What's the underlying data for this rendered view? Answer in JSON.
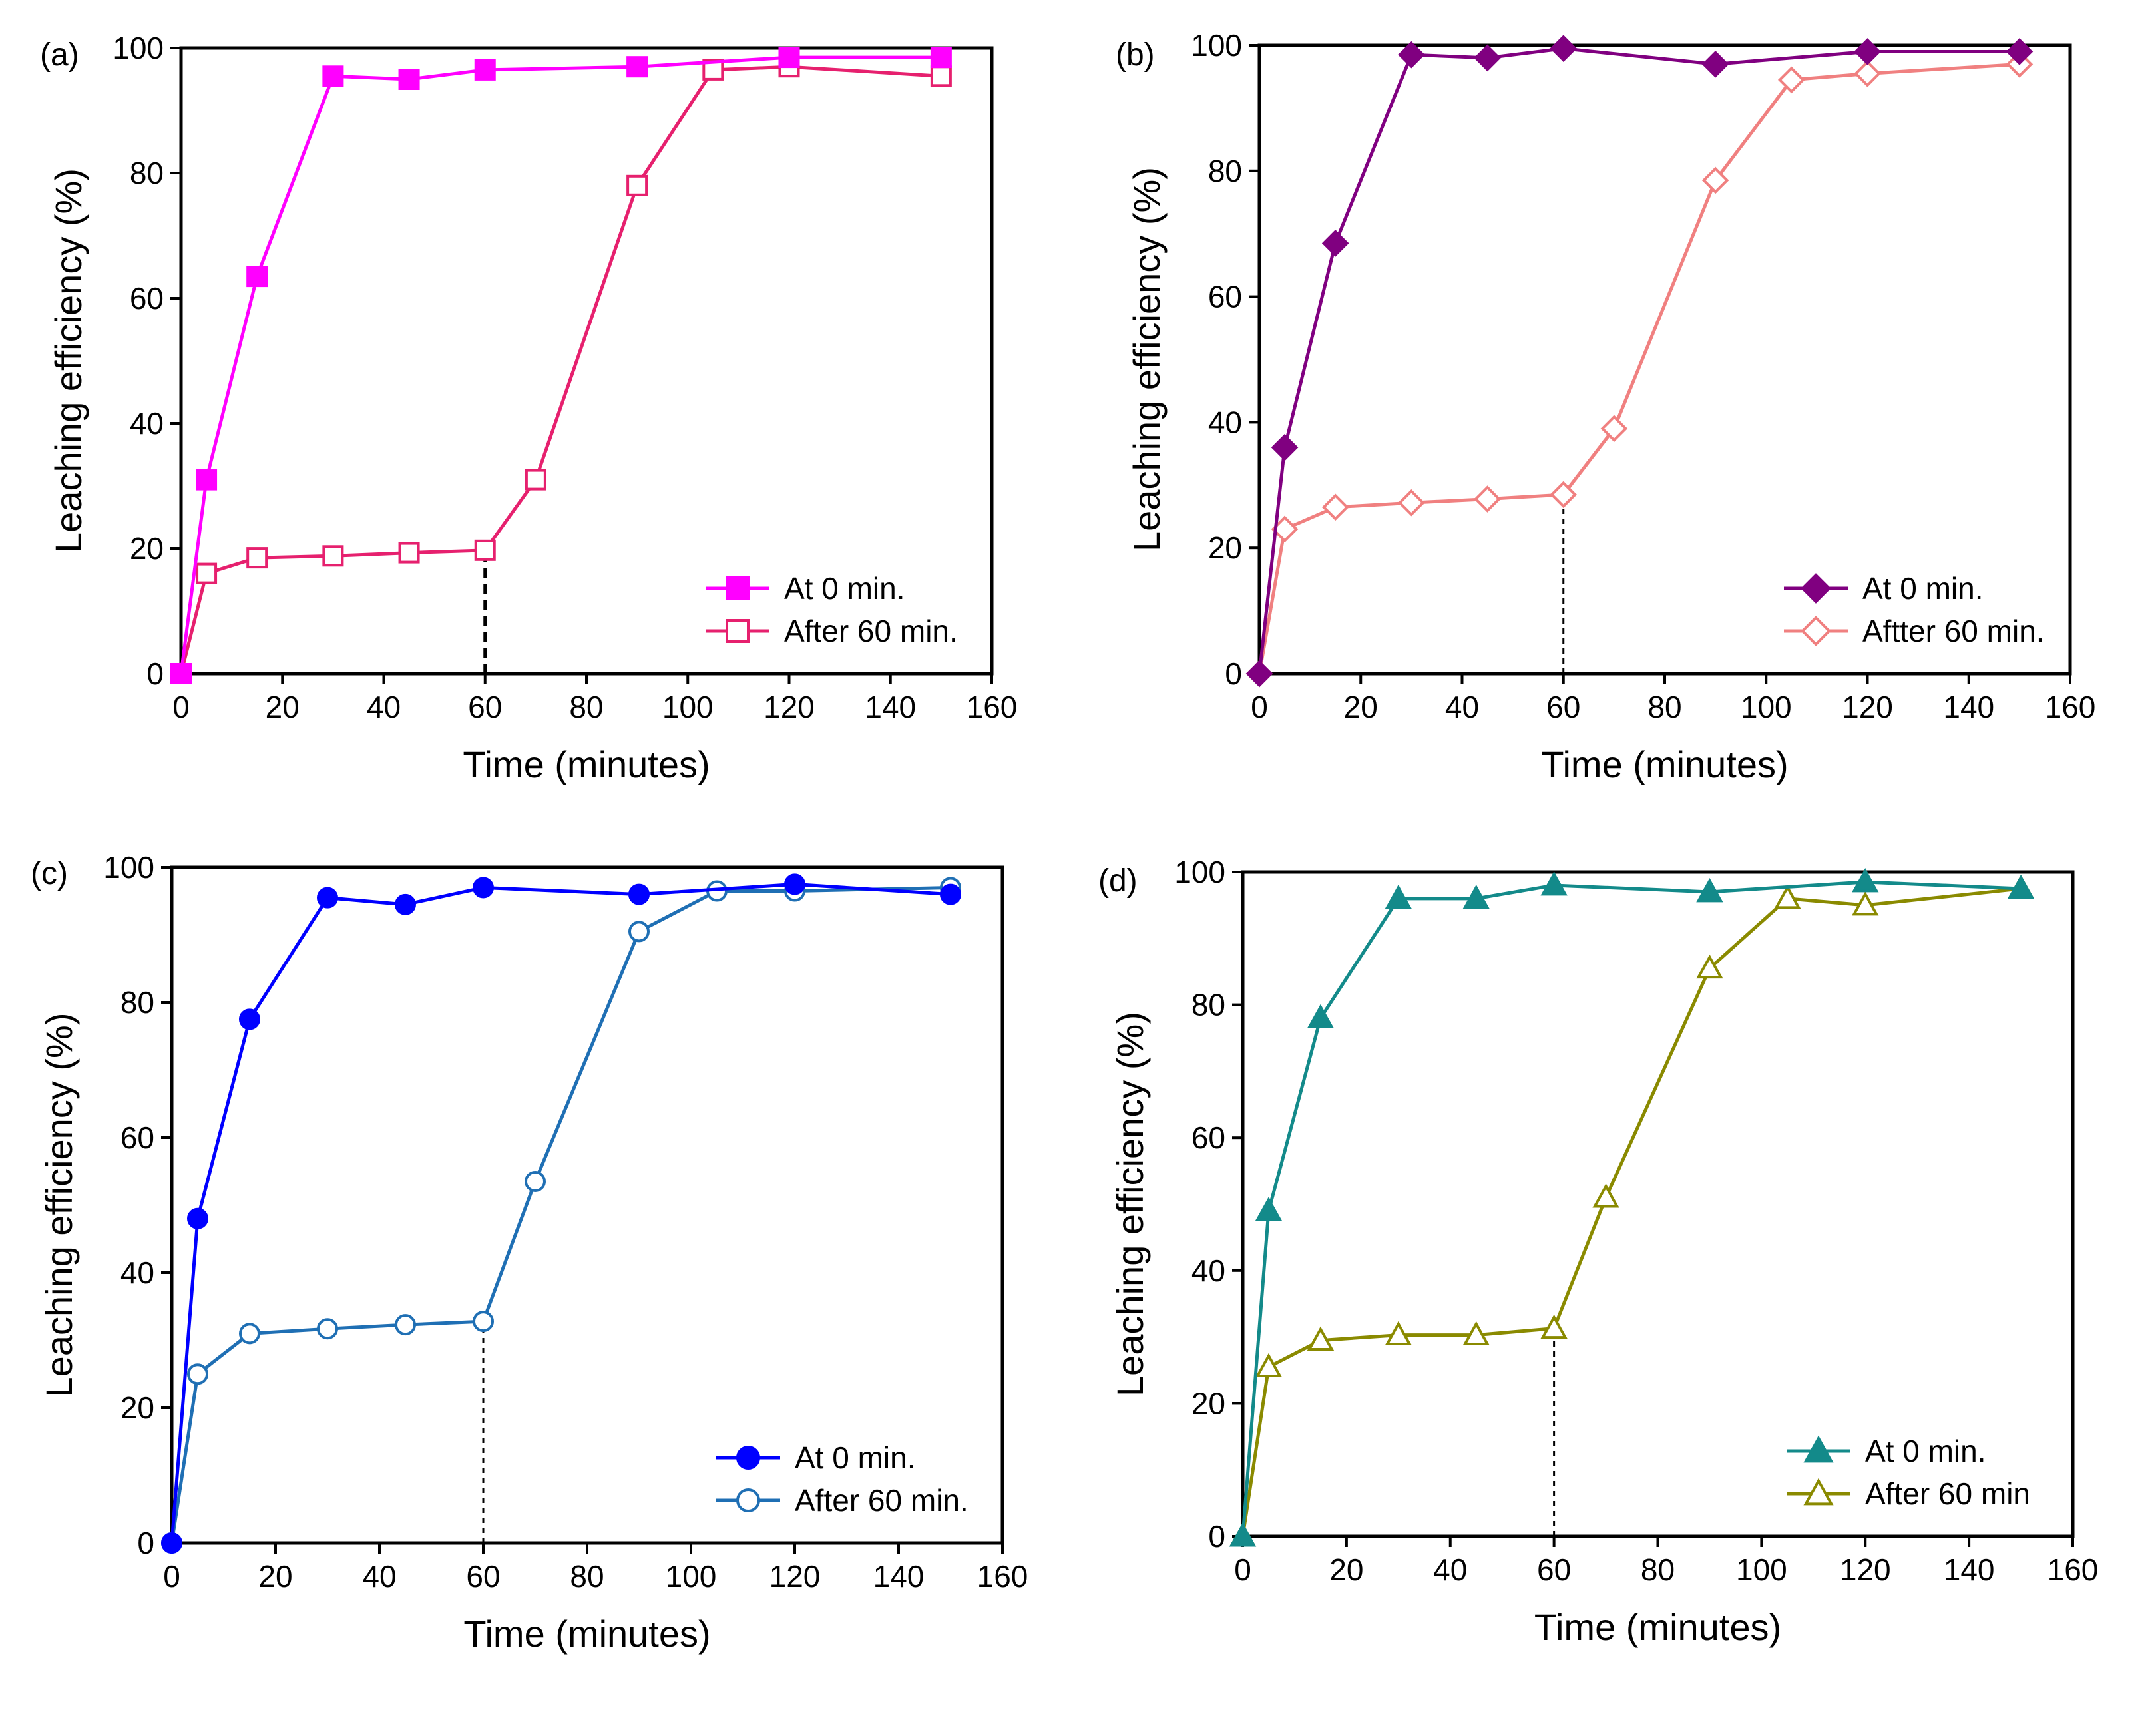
{
  "chart_data": [
    {
      "type": "line",
      "panel_label": "(a)",
      "xlabel": "Time (minutes)",
      "ylabel": "Leaching efficiency (%)",
      "xlim": [
        0,
        160
      ],
      "ylim": [
        0,
        100
      ],
      "xticks": [
        0,
        20,
        40,
        60,
        80,
        100,
        120,
        140,
        160
      ],
      "yticks": [
        0,
        20,
        40,
        60,
        80,
        100
      ],
      "grid": false,
      "legend_position": "bottom-right",
      "marker_line": 60,
      "series": [
        {
          "name": "At 0 min.",
          "color": "#ff00ff",
          "marker": "square",
          "filled": true,
          "x": [
            0,
            5,
            15,
            30,
            45,
            60,
            90,
            120,
            150
          ],
          "y": [
            0,
            31,
            63.5,
            95.5,
            95,
            96.5,
            97,
            98.5,
            98.5
          ]
        },
        {
          "name": "After 60 min.",
          "color": "#e6206e",
          "marker": "square",
          "filled": false,
          "x": [
            0,
            5,
            15,
            30,
            45,
            60,
            70,
            90,
            105,
            120,
            150
          ],
          "y": [
            0,
            16,
            18.5,
            18.8,
            19.3,
            19.7,
            31,
            78,
            96.5,
            97,
            95.5
          ]
        }
      ]
    },
    {
      "type": "line",
      "panel_label": "(b)",
      "xlabel": "Time (minutes)",
      "ylabel": "Leaching efficiency (%)",
      "xlim": [
        0,
        160
      ],
      "ylim": [
        0,
        100
      ],
      "xticks": [
        0,
        20,
        40,
        60,
        80,
        100,
        120,
        140,
        160
      ],
      "yticks": [
        0,
        20,
        40,
        60,
        80,
        100
      ],
      "grid": false,
      "legend_position": "bottom-right",
      "marker_line": 60,
      "series": [
        {
          "name": "At 0 min.",
          "color": "#800080",
          "marker": "diamond",
          "filled": true,
          "x": [
            0,
            5,
            15,
            30,
            45,
            60,
            90,
            120,
            150
          ],
          "y": [
            0,
            36,
            68.5,
            98.5,
            98,
            99.5,
            97,
            99,
            99
          ]
        },
        {
          "name": "Aftter 60 min.",
          "color": "#f08080",
          "marker": "diamond",
          "filled": false,
          "x": [
            0,
            5,
            15,
            30,
            45,
            60,
            70,
            90,
            105,
            120,
            150
          ],
          "y": [
            0,
            23,
            26.5,
            27.2,
            27.8,
            28.5,
            39,
            78.5,
            94.5,
            95.5,
            97
          ]
        }
      ]
    },
    {
      "type": "line",
      "panel_label": "(c)",
      "xlabel": "Time (minutes)",
      "ylabel": "Leaching efficiency (%)",
      "xlim": [
        0,
        160
      ],
      "ylim": [
        0,
        100
      ],
      "xticks": [
        0,
        20,
        40,
        60,
        80,
        100,
        120,
        140,
        160
      ],
      "yticks": [
        0,
        20,
        40,
        60,
        80,
        100
      ],
      "grid": false,
      "legend_position": "bottom-right",
      "marker_line": 60,
      "series": [
        {
          "name": "At 0 min.",
          "color": "#0000ff",
          "marker": "circle",
          "filled": true,
          "x": [
            0,
            5,
            15,
            30,
            45,
            60,
            90,
            120,
            150
          ],
          "y": [
            0,
            48,
            77.5,
            95.5,
            94.5,
            97,
            96,
            97.5,
            96
          ]
        },
        {
          "name": "After 60 min.",
          "color": "#1f6fb4",
          "marker": "circle",
          "filled": false,
          "x": [
            0,
            5,
            15,
            30,
            45,
            60,
            70,
            90,
            105,
            120,
            150
          ],
          "y": [
            0,
            25,
            31,
            31.7,
            32.3,
            32.8,
            53.5,
            90.5,
            96.5,
            96.5,
            97
          ]
        }
      ]
    },
    {
      "type": "line",
      "panel_label": "(d)",
      "xlabel": "Time (minutes)",
      "ylabel": "Leaching efficiency (%)",
      "xlim": [
        0,
        160
      ],
      "ylim": [
        0,
        100
      ],
      "xticks": [
        0,
        20,
        40,
        60,
        80,
        100,
        120,
        140,
        160
      ],
      "yticks": [
        0,
        20,
        40,
        60,
        80,
        100
      ],
      "grid": false,
      "legend_position": "bottom-right",
      "marker_line": 60,
      "series": [
        {
          "name": "At 0 min.",
          "color": "#138a8a",
          "marker": "triangle",
          "filled": true,
          "x": [
            0,
            5,
            15,
            30,
            45,
            60,
            90,
            120,
            150
          ],
          "y": [
            0,
            49,
            78,
            96,
            96,
            98,
            97,
            98.5,
            97.5
          ]
        },
        {
          "name": "After 60 min",
          "color": "#8a8a00",
          "marker": "triangle",
          "filled": false,
          "x": [
            0,
            5,
            15,
            30,
            45,
            60,
            70,
            90,
            105,
            120,
            150
          ],
          "y": [
            0,
            25.5,
            29.5,
            30.3,
            30.3,
            31.3,
            51,
            85.5,
            96,
            95,
            97.5
          ]
        }
      ]
    }
  ]
}
